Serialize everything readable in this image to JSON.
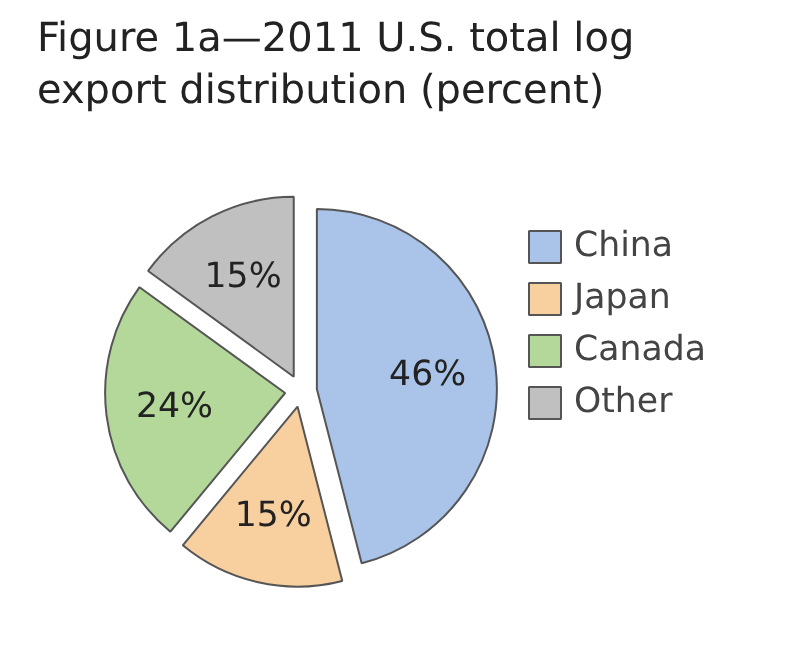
{
  "chart_data": {
    "type": "pie",
    "title": "Figure 1a—2011 U.S. total log export distribution (percent)",
    "categories": [
      "China",
      "Japan",
      "Canada",
      "Other"
    ],
    "values": [
      46,
      15,
      24,
      15
    ],
    "value_labels": [
      "46%",
      "15%",
      "24%",
      "15%"
    ],
    "colors": [
      "#a9c4e8",
      "#f8cf9f",
      "#b4d89a",
      "#c0c0c0"
    ],
    "legend": "right"
  }
}
